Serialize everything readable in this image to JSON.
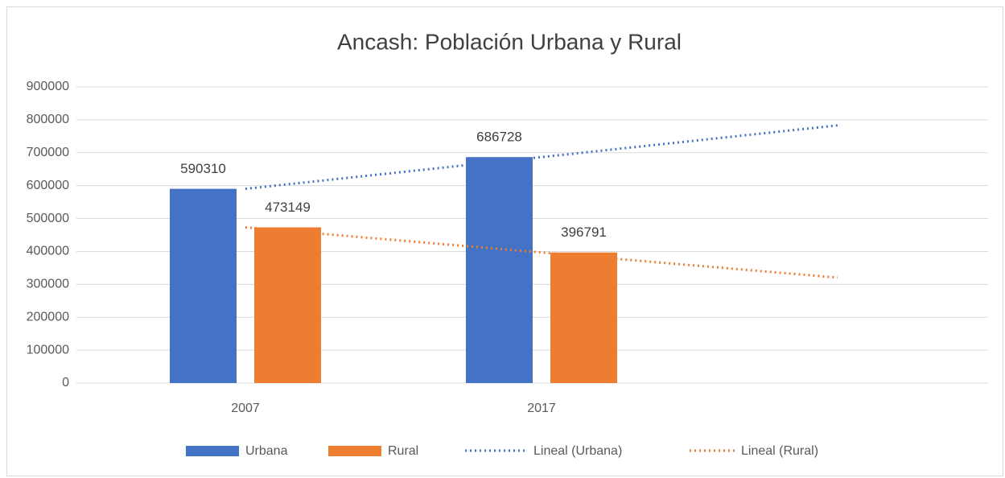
{
  "chart_data": {
    "type": "bar",
    "title": "Ancash: Población Urbana y Rural",
    "categories": [
      "2007",
      "2017",
      null
    ],
    "series": [
      {
        "name": "Urbana",
        "color": "#4472c4",
        "values": [
          590310,
          686728,
          null
        ]
      },
      {
        "name": "Rural",
        "color": "#ed7d31",
        "values": [
          473149,
          396791,
          null
        ]
      },
      {
        "name": "Lineal (Urbana)",
        "type": "line",
        "dash": "dotted",
        "color": "#4472c4",
        "values": [
          590310,
          686728,
          783146
        ]
      },
      {
        "name": "Lineal (Rural)",
        "type": "line",
        "dash": "dotted",
        "color": "#ed7d31",
        "values": [
          473149,
          396791,
          320433
        ]
      }
    ],
    "ylim": [
      0,
      900000
    ],
    "yticks": [
      0,
      100000,
      200000,
      300000,
      400000,
      500000,
      600000,
      700000,
      800000,
      900000
    ],
    "grid": true,
    "legend": "bottom"
  }
}
